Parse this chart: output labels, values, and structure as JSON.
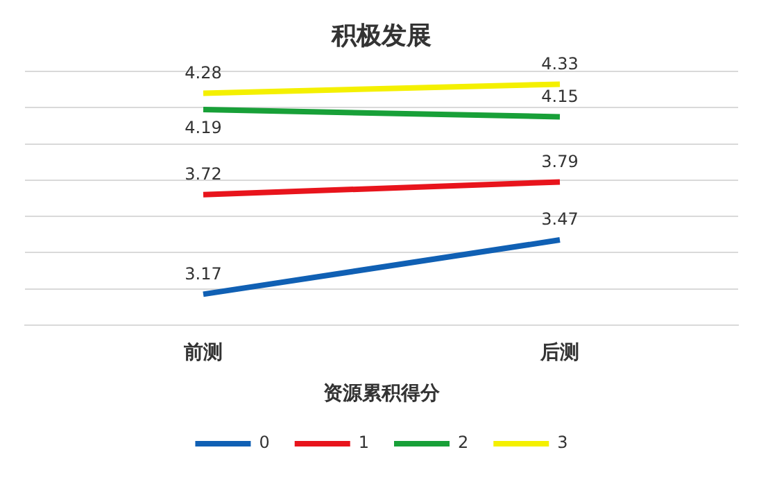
{
  "chart_data": {
    "type": "line",
    "title": "积极发展",
    "legend_title": "资源累积得分",
    "categories": [
      "前测",
      "后测"
    ],
    "series": [
      {
        "name": "0",
        "color": "#1060b4",
        "values": [
          3.17,
          3.47
        ]
      },
      {
        "name": "1",
        "color": "#e8141c",
        "values": [
          3.72,
          3.79
        ]
      },
      {
        "name": "2",
        "color": "#18a038",
        "values": [
          4.19,
          4.15
        ]
      },
      {
        "name": "3",
        "color": "#f4f000",
        "values": [
          4.28,
          4.33
        ]
      }
    ],
    "ylim": [
      3.0,
      4.4
    ],
    "yticks": [
      {
        "value": 3.0,
        "label": null
      },
      {
        "value": 3.2,
        "label": null
      },
      {
        "value": 3.4,
        "label": null
      },
      {
        "value": 3.6,
        "label": null
      },
      {
        "value": 3.8,
        "label": null
      },
      {
        "value": 4.0,
        "label": null
      },
      {
        "value": 4.2,
        "label": null
      },
      {
        "value": 4.4,
        "label": null
      }
    ],
    "tick_labels": "x",
    "grid": "y",
    "legend": "bottom",
    "data_labels": true,
    "marker": "none",
    "line_style": "solid"
  }
}
